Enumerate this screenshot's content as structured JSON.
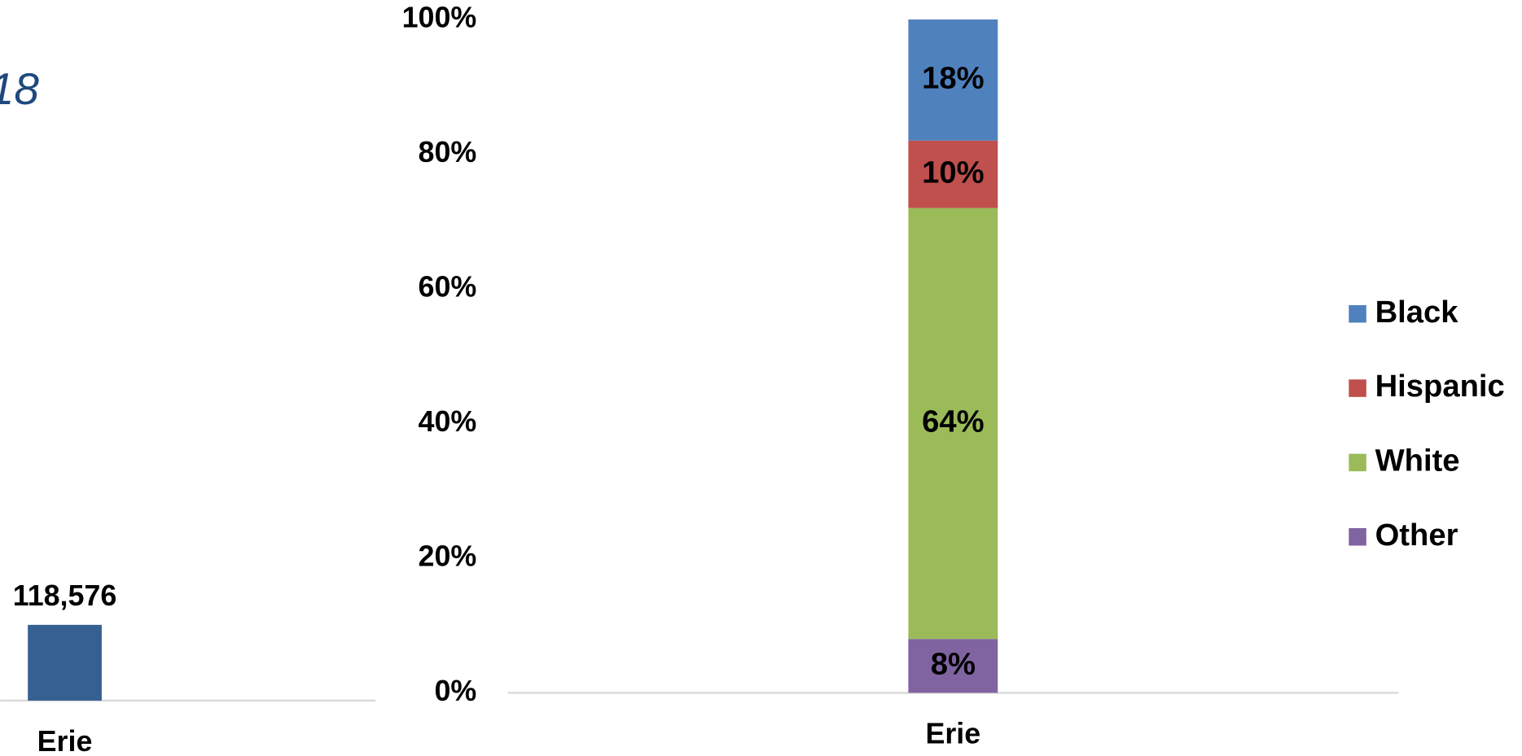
{
  "chart_data": [
    {
      "type": "bar",
      "title": "18",
      "categories": [
        "Erie"
      ],
      "values": [
        118576
      ],
      "value_labels": [
        "118,576"
      ],
      "color": "#366092",
      "ylim": [
        0,
        800000
      ]
    },
    {
      "type": "stacked_bar",
      "categories": [
        "Erie"
      ],
      "series": [
        {
          "name": "Black",
          "color": "#4f81bd",
          "values": [
            18
          ],
          "value_labels": [
            "18%"
          ]
        },
        {
          "name": "Hispanic",
          "color": "#c0504d",
          "values": [
            10
          ],
          "value_labels": [
            "10%"
          ]
        },
        {
          "name": "White",
          "color": "#9bbb59",
          "values": [
            64
          ],
          "value_labels": [
            "64%"
          ]
        },
        {
          "name": "Other",
          "color": "#8064a2",
          "values": [
            8
          ],
          "value_labels": [
            "8%"
          ]
        }
      ],
      "ylim": [
        0,
        100
      ],
      "yticks": [
        {
          "value": 0,
          "label": "0%"
        },
        {
          "value": 20,
          "label": "20%"
        },
        {
          "value": 40,
          "label": "40%"
        },
        {
          "value": 60,
          "label": "60%"
        },
        {
          "value": 80,
          "label": "80%"
        },
        {
          "value": 100,
          "label": "100%"
        }
      ],
      "legend": "right"
    }
  ]
}
